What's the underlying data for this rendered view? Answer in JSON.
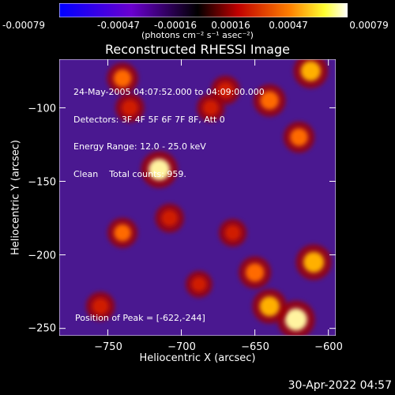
{
  "chart_data": {
    "type": "heatmap",
    "title": "Reconstructed RHESSI Image",
    "xlabel": "Heliocentric X (arcsec)",
    "ylabel": "Heliocentric Y (arcsec)",
    "xlim": [
      -783,
      -595
    ],
    "ylim": [
      -255,
      -67
    ],
    "x_ticks": [
      -750,
      -700,
      -650,
      -600
    ],
    "x_tick_labels": [
      "−750",
      "−700",
      "−650",
      "−600"
    ],
    "y_ticks": [
      -100,
      -150,
      -200,
      -250
    ],
    "y_tick_labels": [
      "−100",
      "−150",
      "−200",
      "−250"
    ],
    "colorbar": {
      "colormap": "blue-purple-red-yellow-white",
      "range": [
        -0.00079,
        0.00079
      ],
      "tick_labels": [
        "-0.00079",
        "-0.00047",
        "-0.00016",
        "0.00016",
        "0.00047",
        "0.00079"
      ],
      "label": "(photons cm⁻² s⁻¹ asec⁻²)"
    },
    "annotations": [
      "24-May-2005 04:07:52.000 to 04:09:00.000",
      "Detectors: 3F 4F 5F 6F 7F 8F, Att 0",
      "Energy Range: 12.0 - 25.0 keV",
      "Clean    Total counts: 959."
    ],
    "peak_label": "Position of Peak = [-622,-244]",
    "bright_regions": [
      {
        "x": -740,
        "y": -80,
        "level": 0.7
      },
      {
        "x": -735,
        "y": -100,
        "level": 0.6
      },
      {
        "x": -715,
        "y": -142,
        "level": 0.95
      },
      {
        "x": -670,
        "y": -88,
        "level": 0.6
      },
      {
        "x": -680,
        "y": -100,
        "level": 0.55
      },
      {
        "x": -640,
        "y": -95,
        "level": 0.75
      },
      {
        "x": -612,
        "y": -75,
        "level": 0.85
      },
      {
        "x": -620,
        "y": -120,
        "level": 0.7
      },
      {
        "x": -740,
        "y": -185,
        "level": 0.65
      },
      {
        "x": -708,
        "y": -175,
        "level": 0.6
      },
      {
        "x": -665,
        "y": -185,
        "level": 0.55
      },
      {
        "x": -688,
        "y": -220,
        "level": 0.5
      },
      {
        "x": -755,
        "y": -235,
        "level": 0.6
      },
      {
        "x": -650,
        "y": -212,
        "level": 0.75
      },
      {
        "x": -610,
        "y": -205,
        "level": 0.9
      },
      {
        "x": -622,
        "y": -244,
        "level": 1.0
      },
      {
        "x": -640,
        "y": -235,
        "level": 0.85
      }
    ]
  },
  "timestamp": "30-Apr-2022 04:57"
}
